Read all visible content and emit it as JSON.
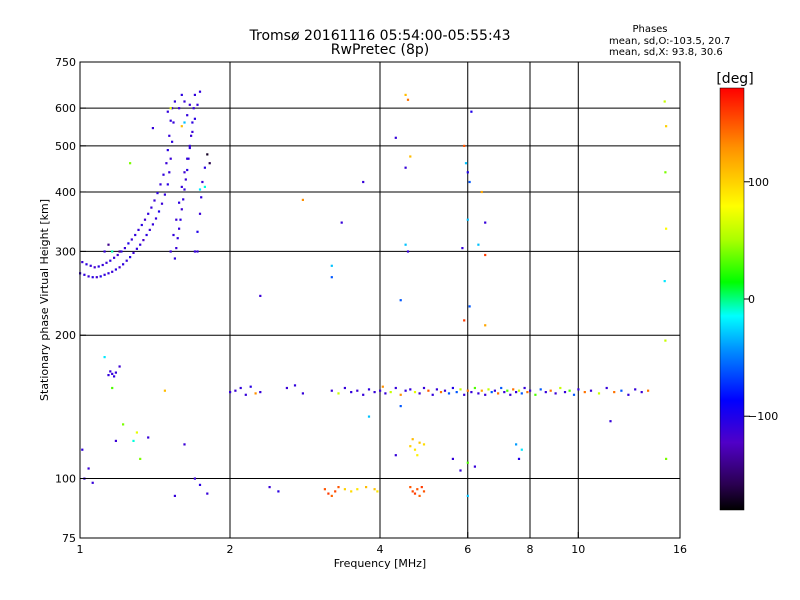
{
  "header": {
    "title_line1": "Tromsø 20161116 05:54:00-05:55:43",
    "title_line2": "RwPretec (8p)"
  },
  "stats": {
    "title": "Phases",
    "line_o": "mean, sd,O:-103.5, 20.7",
    "line_x": "mean, sd,X:  93.8, 30.6"
  },
  "colorbar": {
    "label": "[deg]",
    "ticks": [
      {
        "value": 100,
        "label": "100"
      },
      {
        "value": 0,
        "label": "0"
      },
      {
        "value": -100,
        "label": "−100"
      }
    ],
    "range": [
      -180,
      180
    ]
  },
  "chart_data": {
    "type": "scatter",
    "title": "Tromsø 20161116 05:54:00-05:55:43",
    "subtitle": "RwPretec (8p)",
    "xlabel": "Frequency [MHz]",
    "ylabel": "Stationary phase Virtual Height [km]",
    "x_scale": "log",
    "y_scale": "log",
    "xlim": [
      1,
      16
    ],
    "ylim": [
      75,
      750
    ],
    "x_ticks": [
      {
        "value": 1,
        "label": "1"
      },
      {
        "value": 2,
        "label": "2"
      },
      {
        "value": 4,
        "label": "4"
      },
      {
        "value": 6,
        "label": "6"
      },
      {
        "value": 8,
        "label": "8"
      },
      {
        "value": 10,
        "label": "10"
      },
      {
        "value": 16,
        "label": "16"
      }
    ],
    "y_ticks": [
      {
        "value": 75,
        "label": "75"
      },
      {
        "value": 100,
        "label": "100"
      },
      {
        "value": 200,
        "label": "200"
      },
      {
        "value": 300,
        "label": "300"
      },
      {
        "value": 400,
        "label": "400"
      },
      {
        "value": 500,
        "label": "500"
      },
      {
        "value": 600,
        "label": "600"
      },
      {
        "value": 750,
        "label": "750"
      }
    ],
    "x_grid": [
      2,
      4,
      6,
      8,
      10
    ],
    "y_grid": [
      100,
      200,
      300,
      400,
      500,
      600
    ],
    "grid": true,
    "points": [
      [
        1.0,
        270,
        -110
      ],
      [
        1.02,
        268,
        -108
      ],
      [
        1.04,
        266,
        -112
      ],
      [
        1.06,
        265,
        -105
      ],
      [
        1.08,
        265,
        -115
      ],
      [
        1.1,
        266,
        -100
      ],
      [
        1.12,
        268,
        -110
      ],
      [
        1.14,
        270,
        -108
      ],
      [
        1.16,
        272,
        -112
      ],
      [
        1.18,
        275,
        -104
      ],
      [
        1.2,
        278,
        -118
      ],
      [
        1.22,
        282,
        -106
      ],
      [
        1.24,
        287,
        -110
      ],
      [
        1.26,
        292,
        -102
      ],
      [
        1.28,
        298,
        -114
      ],
      [
        1.3,
        304,
        -108
      ],
      [
        1.32,
        310,
        -110
      ],
      [
        1.34,
        317,
        -120
      ],
      [
        1.36,
        325,
        -105
      ],
      [
        1.38,
        333,
        -112
      ],
      [
        1.4,
        342,
        -108
      ],
      [
        1.42,
        352,
        -110
      ],
      [
        1.44,
        364,
        -100
      ],
      [
        1.46,
        378,
        -112
      ],
      [
        1.48,
        395,
        -108
      ],
      [
        1.5,
        415,
        -104
      ],
      [
        1.51,
        440,
        -110
      ],
      [
        1.52,
        470,
        -112
      ],
      [
        1.53,
        510,
        -106
      ],
      [
        1.54,
        560,
        -110
      ],
      [
        1.55,
        620,
        -108
      ],
      [
        1.01,
        285,
        -112
      ],
      [
        1.03,
        282,
        -106
      ],
      [
        1.05,
        280,
        -110
      ],
      [
        1.07,
        278,
        -118
      ],
      [
        1.09,
        279,
        -104
      ],
      [
        1.11,
        281,
        -110
      ],
      [
        1.13,
        284,
        -112
      ],
      [
        1.15,
        287,
        -108
      ],
      [
        1.17,
        291,
        -110
      ],
      [
        1.19,
        295,
        -114
      ],
      [
        1.21,
        300,
        -106
      ],
      [
        1.23,
        305,
        -110
      ],
      [
        1.25,
        312,
        -100
      ],
      [
        1.27,
        318,
        -112
      ],
      [
        1.29,
        325,
        -108
      ],
      [
        1.31,
        333,
        -110
      ],
      [
        1.33,
        341,
        -104
      ],
      [
        1.35,
        350,
        -116
      ],
      [
        1.37,
        360,
        -108
      ],
      [
        1.39,
        371,
        -110
      ],
      [
        1.41,
        384,
        -112
      ],
      [
        1.43,
        398,
        -106
      ],
      [
        1.45,
        415,
        -110
      ],
      [
        1.47,
        435,
        -108
      ],
      [
        1.49,
        460,
        -112
      ],
      [
        1.5,
        490,
        -104
      ],
      [
        1.51,
        525,
        -110
      ],
      [
        1.52,
        565,
        -108
      ],
      [
        1.53,
        600,
        -112
      ],
      [
        1.55,
        290,
        -105
      ],
      [
        1.56,
        305,
        -112
      ],
      [
        1.57,
        320,
        -108
      ],
      [
        1.58,
        335,
        -110
      ],
      [
        1.59,
        350,
        -106
      ],
      [
        1.6,
        368,
        -114
      ],
      [
        1.61,
        386,
        -108
      ],
      [
        1.62,
        405,
        -110
      ],
      [
        1.63,
        425,
        -112
      ],
      [
        1.64,
        445,
        -104
      ],
      [
        1.65,
        470,
        -110
      ],
      [
        1.66,
        495,
        -108
      ],
      [
        1.67,
        525,
        -112
      ],
      [
        1.68,
        560,
        -106
      ],
      [
        1.69,
        600,
        -110
      ],
      [
        1.7,
        640,
        -108
      ],
      [
        1.52,
        300,
        -110
      ],
      [
        1.54,
        325,
        -108
      ],
      [
        1.56,
        350,
        -112
      ],
      [
        1.58,
        380,
        -106
      ],
      [
        1.6,
        410,
        -110
      ],
      [
        1.62,
        440,
        -114
      ],
      [
        1.64,
        470,
        -108
      ],
      [
        1.66,
        500,
        -110
      ],
      [
        1.68,
        535,
        -112
      ],
      [
        1.7,
        570,
        -104
      ],
      [
        1.72,
        610,
        -110
      ],
      [
        1.74,
        650,
        -108
      ],
      [
        1.58,
        600,
        -112
      ],
      [
        1.6,
        640,
        -106
      ],
      [
        1.62,
        620,
        -110
      ],
      [
        1.64,
        580,
        -108
      ],
      [
        1.66,
        610,
        -112
      ],
      [
        1.7,
        300,
        -110
      ],
      [
        1.72,
        330,
        -100
      ],
      [
        1.74,
        360,
        -112
      ],
      [
        1.75,
        390,
        -108
      ],
      [
        1.76,
        420,
        -110
      ],
      [
        1.78,
        450,
        -104
      ],
      [
        1.8,
        480,
        -170
      ],
      [
        1.82,
        460,
        -160
      ],
      [
        1.78,
        410,
        -10
      ],
      [
        1.74,
        405,
        -20
      ],
      [
        1.72,
        300,
        -110
      ],
      [
        1.14,
        310,
        -140
      ],
      [
        1.16,
        300,
        -5
      ],
      [
        1.12,
        300,
        -110
      ],
      [
        1.2,
        300,
        -140
      ],
      [
        1.02,
        100,
        -110
      ],
      [
        1.04,
        105,
        -112
      ],
      [
        1.01,
        115,
        -108
      ],
      [
        1.06,
        98,
        -110
      ],
      [
        1.14,
        165,
        -108
      ],
      [
        1.15,
        168,
        -112
      ],
      [
        1.16,
        166,
        -110
      ],
      [
        1.17,
        164,
        -106
      ],
      [
        1.18,
        167,
        -110
      ],
      [
        1.2,
        172,
        -114
      ],
      [
        1.12,
        180,
        -20
      ],
      [
        1.16,
        155,
        30
      ],
      [
        1.22,
        130,
        40
      ],
      [
        1.18,
        120,
        -112
      ],
      [
        1.3,
        125,
        70
      ],
      [
        1.32,
        110,
        40
      ],
      [
        1.48,
        153,
        110
      ],
      [
        1.62,
        118,
        -112
      ],
      [
        1.55,
        92,
        -110
      ],
      [
        1.7,
        100,
        -110
      ],
      [
        1.74,
        97,
        -105
      ],
      [
        1.8,
        93,
        -110
      ],
      [
        1.52,
        600,
        70
      ],
      [
        1.6,
        550,
        110
      ],
      [
        1.62,
        560,
        -30
      ],
      [
        1.4,
        545,
        -110
      ],
      [
        1.5,
        590,
        -108
      ],
      [
        1.26,
        460,
        40
      ],
      [
        1.28,
        120,
        -10
      ],
      [
        1.37,
        122,
        -110
      ],
      [
        2.3,
        242,
        -112
      ],
      [
        2.8,
        385,
        130
      ],
      [
        2.5,
        94,
        -105
      ],
      [
        2.4,
        96,
        -112
      ],
      [
        2.0,
        152,
        -110
      ],
      [
        2.05,
        153,
        -112
      ],
      [
        2.1,
        155,
        -108
      ],
      [
        2.15,
        150,
        -110
      ],
      [
        2.2,
        156,
        -104
      ],
      [
        2.25,
        151,
        130
      ],
      [
        2.3,
        152,
        -110
      ],
      [
        2.6,
        155,
        -112
      ],
      [
        2.7,
        157,
        -108
      ],
      [
        2.8,
        151,
        -110
      ],
      [
        3.2,
        153,
        -112
      ],
      [
        3.3,
        151,
        60
      ],
      [
        3.4,
        155,
        -110
      ],
      [
        3.5,
        152,
        -108
      ],
      [
        3.6,
        153,
        -112
      ],
      [
        3.7,
        150,
        -110
      ],
      [
        3.8,
        154,
        -106
      ],
      [
        3.9,
        152,
        -110
      ],
      [
        4.0,
        153,
        -112
      ],
      [
        4.05,
        156,
        130
      ],
      [
        4.1,
        151,
        -110
      ],
      [
        4.2,
        152,
        60
      ],
      [
        4.3,
        155,
        -110
      ],
      [
        4.4,
        150,
        130
      ],
      [
        4.5,
        153,
        -108
      ],
      [
        4.6,
        154,
        -110
      ],
      [
        4.7,
        152,
        70
      ],
      [
        4.8,
        151,
        -112
      ],
      [
        4.9,
        155,
        -110
      ],
      [
        5.0,
        153,
        150
      ],
      [
        5.1,
        150,
        -108
      ],
      [
        5.2,
        154,
        -110
      ],
      [
        5.3,
        152,
        140
      ],
      [
        5.4,
        153,
        -112
      ],
      [
        5.5,
        151,
        -60
      ],
      [
        5.6,
        155,
        -100
      ],
      [
        5.7,
        152,
        -60
      ],
      [
        5.8,
        154,
        60
      ],
      [
        5.9,
        150,
        -110
      ],
      [
        6.0,
        153,
        140
      ],
      [
        6.1,
        152,
        -110
      ],
      [
        6.2,
        155,
        30
      ],
      [
        6.3,
        151,
        -110
      ],
      [
        6.4,
        153,
        120
      ],
      [
        6.5,
        150,
        -112
      ],
      [
        6.6,
        154,
        60
      ],
      [
        6.7,
        152,
        -60
      ],
      [
        6.8,
        153,
        -110
      ],
      [
        6.9,
        151,
        140
      ],
      [
        7.0,
        155,
        -60
      ],
      [
        7.1,
        152,
        -110
      ],
      [
        7.2,
        153,
        30
      ],
      [
        7.3,
        150,
        -112
      ],
      [
        7.4,
        154,
        140
      ],
      [
        7.5,
        152,
        -110
      ],
      [
        7.6,
        153,
        60
      ],
      [
        7.7,
        151,
        -60
      ],
      [
        7.8,
        155,
        -110
      ],
      [
        7.9,
        152,
        140
      ],
      [
        8.0,
        153,
        -112
      ],
      [
        8.2,
        150,
        30
      ],
      [
        8.4,
        154,
        -60
      ],
      [
        8.6,
        152,
        -110
      ],
      [
        8.8,
        153,
        140
      ],
      [
        9.0,
        151,
        -112
      ],
      [
        9.2,
        155,
        60
      ],
      [
        9.4,
        152,
        -110
      ],
      [
        9.6,
        153,
        30
      ],
      [
        9.8,
        150,
        -60
      ],
      [
        10.0,
        154,
        -110
      ],
      [
        10.3,
        152,
        140
      ],
      [
        10.6,
        153,
        -112
      ],
      [
        11.0,
        151,
        60
      ],
      [
        11.4,
        155,
        -110
      ],
      [
        11.8,
        152,
        140
      ],
      [
        12.2,
        153,
        -60
      ],
      [
        12.6,
        150,
        -110
      ],
      [
        13.0,
        154,
        -110
      ],
      [
        13.4,
        152,
        -112
      ],
      [
        13.8,
        153,
        140
      ],
      [
        3.1,
        95,
        150
      ],
      [
        3.15,
        93,
        160
      ],
      [
        3.2,
        92,
        145
      ],
      [
        3.25,
        94,
        155
      ],
      [
        3.3,
        96,
        150
      ],
      [
        3.4,
        95,
        100
      ],
      [
        3.5,
        94,
        95
      ],
      [
        3.6,
        95,
        90
      ],
      [
        3.75,
        96,
        110
      ],
      [
        3.9,
        95,
        105
      ],
      [
        3.95,
        94,
        90
      ],
      [
        4.6,
        96,
        150
      ],
      [
        4.65,
        94,
        155
      ],
      [
        4.7,
        93,
        160
      ],
      [
        4.75,
        95,
        150
      ],
      [
        4.8,
        92,
        145
      ],
      [
        4.85,
        96,
        160
      ],
      [
        4.9,
        94,
        150
      ],
      [
        4.6,
        117,
        100
      ],
      [
        4.7,
        115,
        90
      ],
      [
        4.8,
        119,
        105
      ],
      [
        4.65,
        121,
        110
      ],
      [
        4.75,
        112,
        85
      ],
      [
        4.9,
        118,
        95
      ],
      [
        3.8,
        135,
        -30
      ],
      [
        4.4,
        142,
        -60
      ],
      [
        4.3,
        112,
        -110
      ],
      [
        5.6,
        110,
        -110
      ],
      [
        5.8,
        104,
        -110
      ],
      [
        6.0,
        92,
        -30
      ],
      [
        6.0,
        108,
        30
      ],
      [
        6.2,
        106,
        -110
      ],
      [
        7.5,
        118,
        -40
      ],
      [
        7.6,
        110,
        -100
      ],
      [
        7.7,
        115,
        -20
      ],
      [
        11.6,
        132,
        -110
      ],
      [
        3.2,
        280,
        -30
      ],
      [
        3.2,
        265,
        -60
      ],
      [
        3.35,
        345,
        -110
      ],
      [
        3.7,
        420,
        -110
      ],
      [
        4.3,
        520,
        -110
      ],
      [
        4.5,
        450,
        -110
      ],
      [
        4.6,
        475,
        110
      ],
      [
        4.5,
        310,
        -30
      ],
      [
        4.55,
        300,
        -110
      ],
      [
        4.5,
        640,
        110
      ],
      [
        4.55,
        625,
        140
      ],
      [
        4.4,
        237,
        -60
      ],
      [
        5.9,
        500,
        150
      ],
      [
        5.95,
        460,
        -30
      ],
      [
        6.0,
        440,
        -100
      ],
      [
        6.05,
        420,
        -60
      ],
      [
        6.0,
        350,
        -30
      ],
      [
        6.05,
        230,
        -60
      ],
      [
        5.9,
        215,
        160
      ],
      [
        6.1,
        590,
        -100
      ],
      [
        6.4,
        400,
        120
      ],
      [
        6.5,
        345,
        -110
      ],
      [
        6.5,
        210,
        120
      ],
      [
        6.5,
        295,
        160
      ],
      [
        6.3,
        310,
        -30
      ],
      [
        5.85,
        305,
        -110
      ],
      [
        14.9,
        620,
        60
      ],
      [
        15.0,
        550,
        100
      ],
      [
        14.95,
        440,
        40
      ],
      [
        15.0,
        335,
        80
      ],
      [
        14.9,
        260,
        -20
      ],
      [
        14.95,
        195,
        60
      ],
      [
        15.0,
        110,
        40
      ]
    ]
  }
}
